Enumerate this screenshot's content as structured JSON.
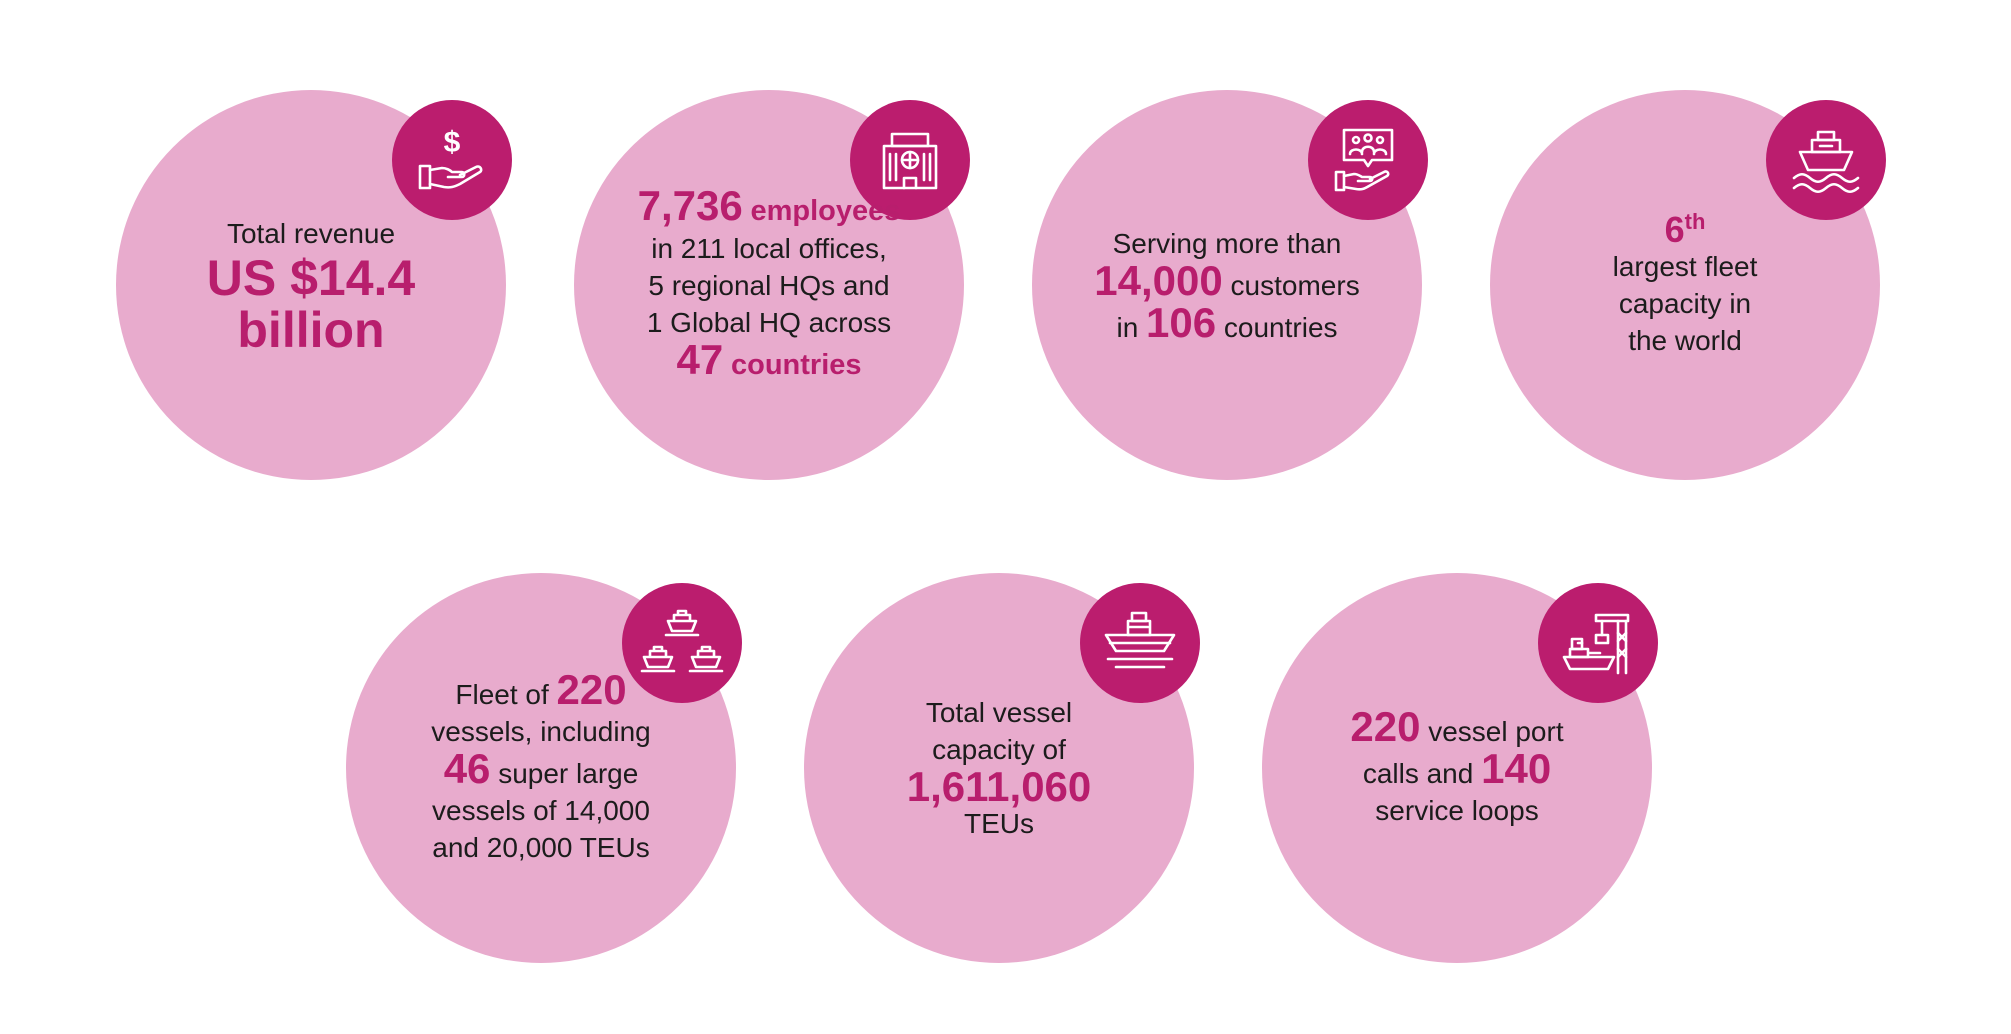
{
  "accent_color": "#bb1d6e",
  "circle_color": "#e8abcd",
  "stats": [
    {
      "icon": "dollar-hand-icon",
      "label": "Total revenue",
      "value_line1": "US $14.4",
      "value_line2": "billion"
    },
    {
      "icon": "office-building-icon",
      "employees_value": "7,736",
      "employees_label": "employees",
      "line2": "in 211 local offices,",
      "line3": "5 regional HQs and",
      "line4": "1 Global HQ across",
      "countries_value": "47",
      "countries_label": "countries"
    },
    {
      "icon": "customers-hand-icon",
      "line1": "Serving more than",
      "customers_value": "14,000",
      "customers_label": "customers",
      "in_label": "in",
      "countries_value": "106",
      "countries_label": "countries"
    },
    {
      "icon": "ship-waves-icon",
      "rank_value": "6",
      "rank_suffix": "th",
      "line2": "largest fleet",
      "line3": "capacity in",
      "line4": "the world"
    },
    {
      "icon": "three-ships-icon",
      "fleet_prefix": "Fleet of",
      "fleet_value": "220",
      "line2": "vessels, including",
      "super_value": "46",
      "super_label": "super large",
      "line4": "vessels of 14,000",
      "line5": "and 20,000 TEUs"
    },
    {
      "icon": "cargo-ship-icon",
      "line1": "Total vessel",
      "line2": "capacity of",
      "capacity_value": "1,611,060",
      "line4": "TEUs"
    },
    {
      "icon": "port-crane-icon",
      "calls_value": "220",
      "calls_label": "vessel port",
      "calls_word": "calls and",
      "loops_value": "140",
      "loops_label": "service loops"
    }
  ]
}
